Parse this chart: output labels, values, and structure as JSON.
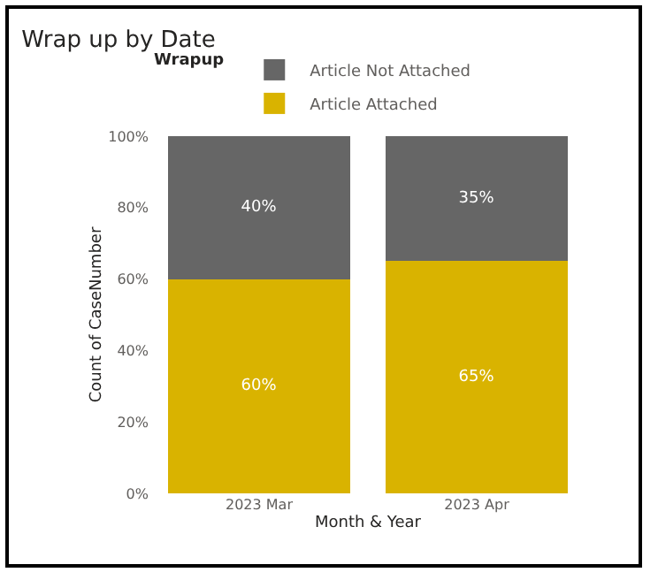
{
  "chart_data": {
    "type": "bar",
    "title": "Wrap up by Date",
    "xlabel": "Month & Year",
    "ylabel": "Count of CaseNumber",
    "legend_title": "Wrapup",
    "legend": "top left",
    "stacked": true,
    "grid": false,
    "categories": [
      "2023 Mar",
      "2023 Apr"
    ],
    "series": [
      {
        "name": "Article Attached",
        "color": "#d9b300",
        "values": [
          60,
          65
        ],
        "value_labels": [
          "60%",
          "65%"
        ]
      },
      {
        "name": "Article Not Attached",
        "color": "#666666",
        "values": [
          40,
          35
        ],
        "value_labels": [
          "40%",
          "35%"
        ]
      }
    ],
    "ylim": [
      0,
      100
    ],
    "yticks": [
      {
        "value": 0,
        "label": "0%"
      },
      {
        "value": 20,
        "label": "20%"
      },
      {
        "value": 40,
        "label": "40%"
      },
      {
        "value": 60,
        "label": "60%"
      },
      {
        "value": 80,
        "label": "80%"
      },
      {
        "value": 100,
        "label": "100%"
      }
    ]
  }
}
